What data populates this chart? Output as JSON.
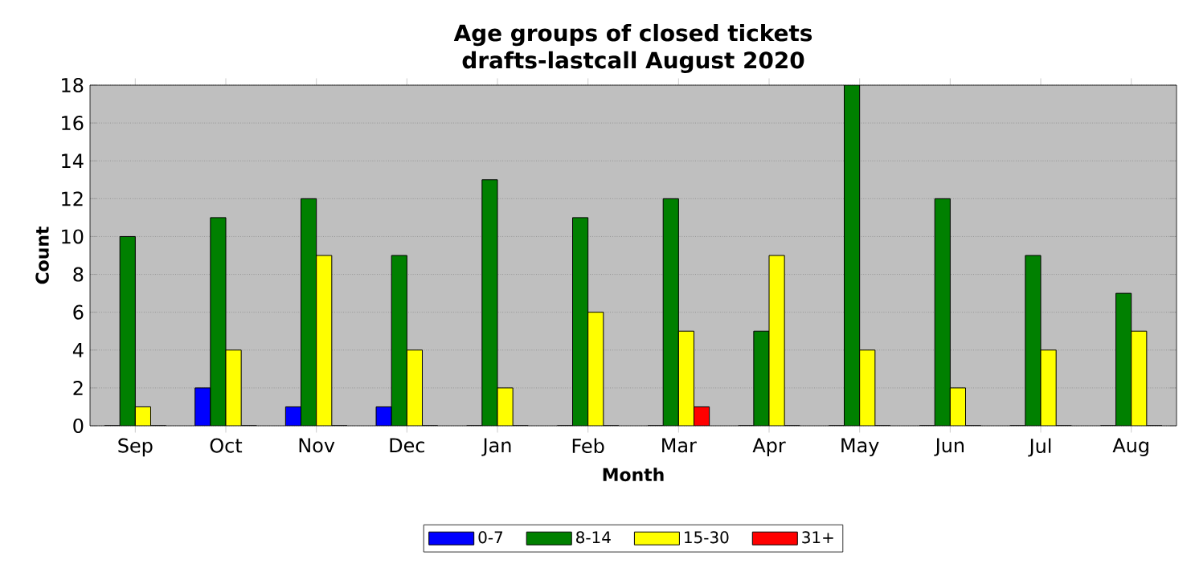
{
  "chart_data": {
    "type": "bar",
    "title": "Age groups of closed tickets",
    "subtitle": "drafts-lastcall August 2020",
    "xlabel": "Month",
    "ylabel": "Count",
    "categories": [
      "Sep",
      "Oct",
      "Nov",
      "Dec",
      "Jan",
      "Feb",
      "Mar",
      "Apr",
      "May",
      "Jun",
      "Jul",
      "Aug"
    ],
    "series": [
      {
        "name": "0-7",
        "color": "#0000ff",
        "values": [
          0,
          2,
          1,
          1,
          0,
          0,
          0,
          0,
          0,
          0,
          0,
          0
        ]
      },
      {
        "name": "8-14",
        "color": "#008000",
        "values": [
          10,
          11,
          12,
          9,
          13,
          11,
          12,
          5,
          18,
          12,
          9,
          7
        ]
      },
      {
        "name": "15-30",
        "color": "#ffff00",
        "values": [
          1,
          4,
          9,
          4,
          2,
          6,
          5,
          9,
          4,
          2,
          4,
          5
        ]
      },
      {
        "name": "31+",
        "color": "#ff0000",
        "values": [
          0,
          0,
          0,
          0,
          0,
          0,
          1,
          0,
          0,
          0,
          0,
          0
        ]
      }
    ],
    "ylim": [
      0,
      18
    ],
    "yticks": [
      0,
      2,
      4,
      6,
      8,
      10,
      12,
      14,
      16,
      18
    ],
    "grid": "y",
    "legend": "bottom"
  }
}
